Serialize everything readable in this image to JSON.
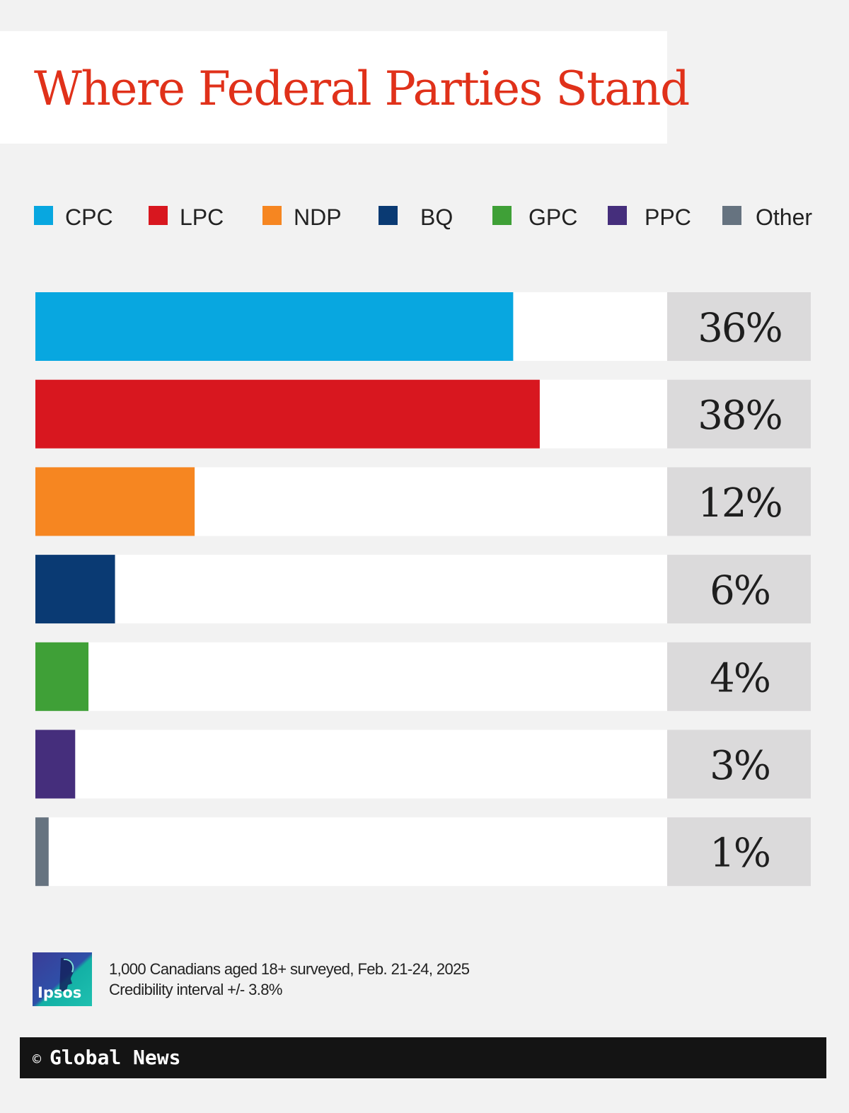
{
  "header": {
    "title": "Where Federal Parties Stand"
  },
  "legend": [
    {
      "label": "CPC",
      "color": "#08a7e0"
    },
    {
      "label": "LPC",
      "color": "#d8171f"
    },
    {
      "label": "NDP",
      "color": "#f68621"
    },
    {
      "label": "BQ",
      "color": "#0a3a73"
    },
    {
      "label": "GPC",
      "color": "#3fa037"
    },
    {
      "label": "PPC",
      "color": "#452e7c"
    },
    {
      "label": "Other",
      "color": "#667380"
    }
  ],
  "chart_data": {
    "type": "bar",
    "orientation": "horizontal",
    "categories": [
      "CPC",
      "LPC",
      "NDP",
      "BQ",
      "GPC",
      "PPC",
      "Other"
    ],
    "values": [
      36,
      38,
      12,
      6,
      4,
      3,
      1
    ],
    "value_labels": [
      "36%",
      "38%",
      "12%",
      "6%",
      "4%",
      "3%",
      "1%"
    ],
    "colors": [
      "#08a7e0",
      "#d8171f",
      "#f68621",
      "#0a3a73",
      "#3fa037",
      "#452e7c",
      "#667380"
    ],
    "xlim": [
      0,
      47.6
    ],
    "unit": "%",
    "legend_position": "top",
    "grid": false
  },
  "footer": {
    "note_line1": "1,000 Canadians aged 18+ surveyed, Feb. 21-24, 2025",
    "note_line2": "Credibility interval +/- 3.8%",
    "logo_text": "Ipsos",
    "copyright_symbol": "©",
    "credit": "Global News"
  }
}
